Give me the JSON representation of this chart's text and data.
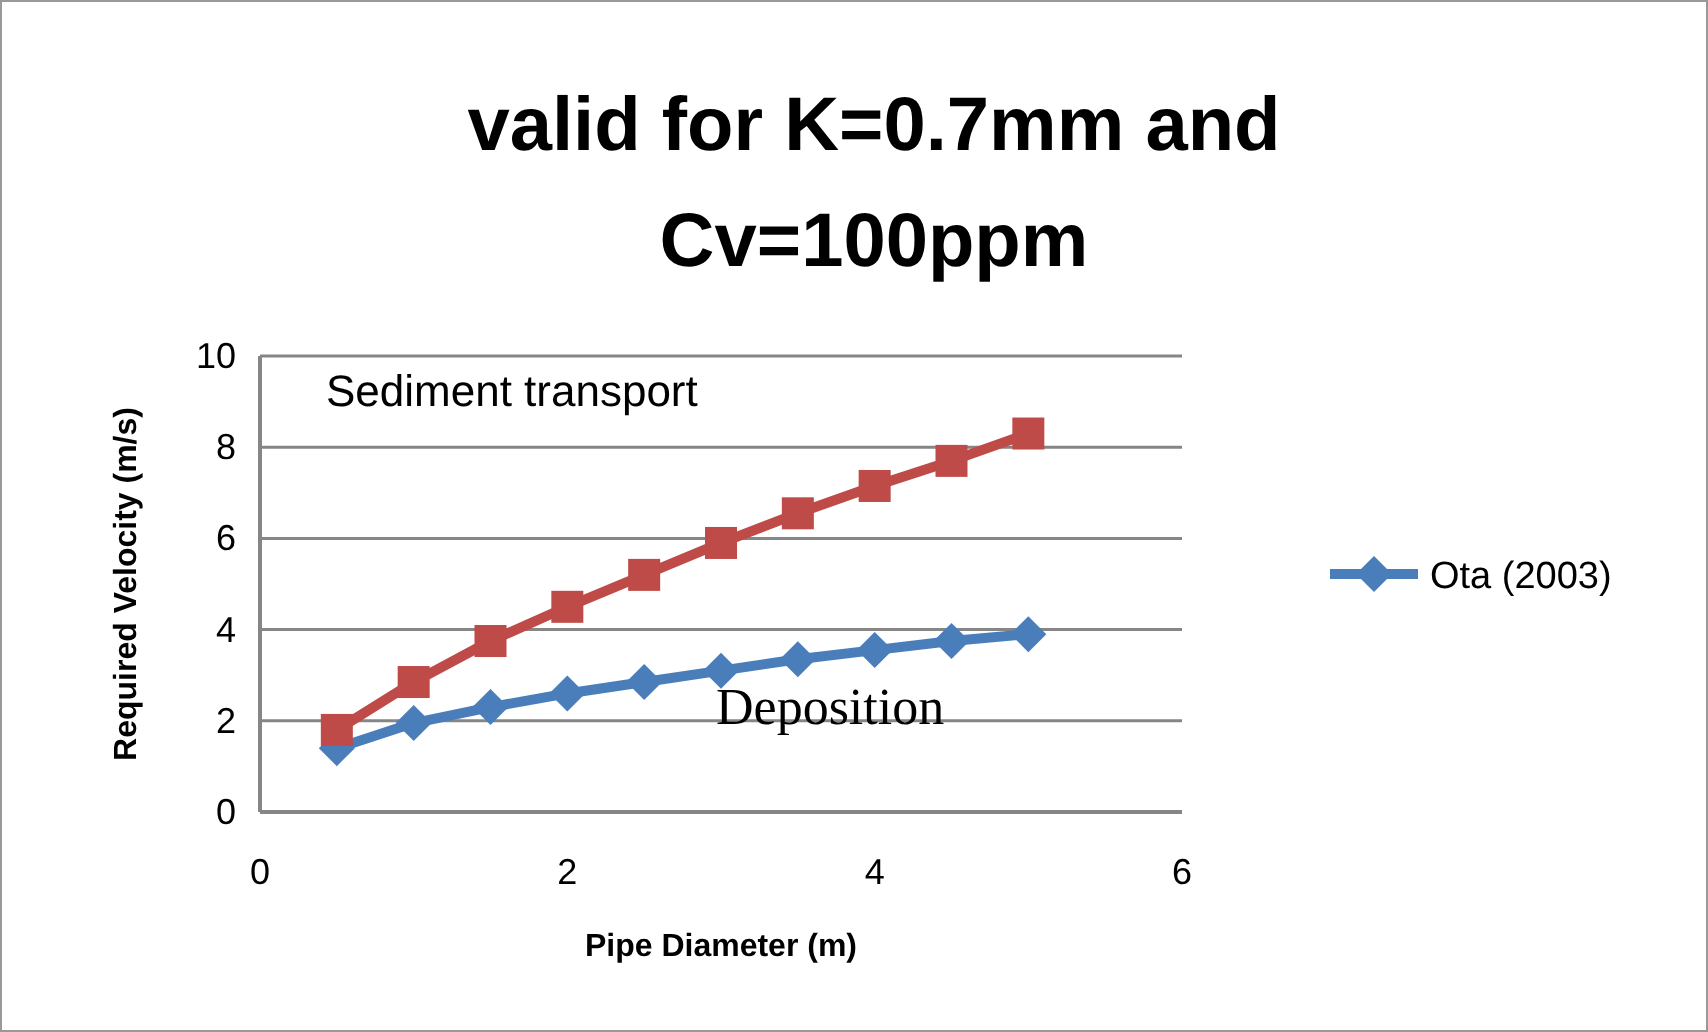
{
  "chart_data": {
    "type": "line",
    "title": "valid for K=0.7mm and Cv=100ppm",
    "xlabel": "Pipe Diameter (m)",
    "ylabel": "Required Velocity (m/s)",
    "x": [
      0.5,
      1,
      1.5,
      2,
      2.5,
      3,
      3.5,
      4,
      4.5,
      5
    ],
    "series": [
      {
        "name": "Ota (2003)",
        "color": "#4a7ebb",
        "marker": "diamond",
        "values": [
          1.4,
          1.95,
          2.3,
          2.6,
          2.85,
          3.1,
          3.35,
          3.55,
          3.75,
          3.9
        ]
      },
      {
        "color": "#be4b48",
        "marker": "square",
        "values": [
          1.8,
          2.85,
          3.75,
          4.5,
          5.2,
          5.9,
          6.55,
          7.15,
          7.7,
          8.3
        ]
      }
    ],
    "annotations": [
      "Sediment transport",
      "Deposition"
    ],
    "xlim": [
      0,
      6
    ],
    "xticks": [
      0,
      2,
      4,
      6
    ],
    "ylim": [
      0,
      10
    ],
    "yticks": [
      0,
      2,
      4,
      6,
      8,
      10
    ],
    "grid": "y",
    "legend": "right"
  }
}
